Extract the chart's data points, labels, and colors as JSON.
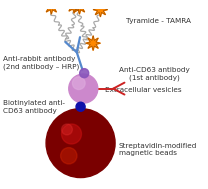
{
  "labels": {
    "tyramide": "Tyramide - TAMRA",
    "anti_rabbit": "Anti-rabbit antibody\n(2nd antibody – HRP)",
    "anti_cd63_1st": "Anti-CD63 antibody\n(1st antibody)",
    "extracellular": "Extracellular vesicles",
    "biotinylated": "Biotinylated anti-\nCD63 antibody",
    "streptavidin": "Streptavidin-modified\nmagnetic beads"
  },
  "colors": {
    "orange_star": "#FF8800",
    "dark_orange": "#AA5500",
    "blue_antibody": "#5588CC",
    "red_antibody": "#CC2222",
    "green_antibody": "#33AA33",
    "purple_vesicle": "#CC88CC",
    "dark_red_bead": "#7A0000",
    "blue_dot": "#1111AA",
    "chain_gray": "#999999",
    "label_color": "#333333",
    "purple_connector": "#8855BB"
  }
}
